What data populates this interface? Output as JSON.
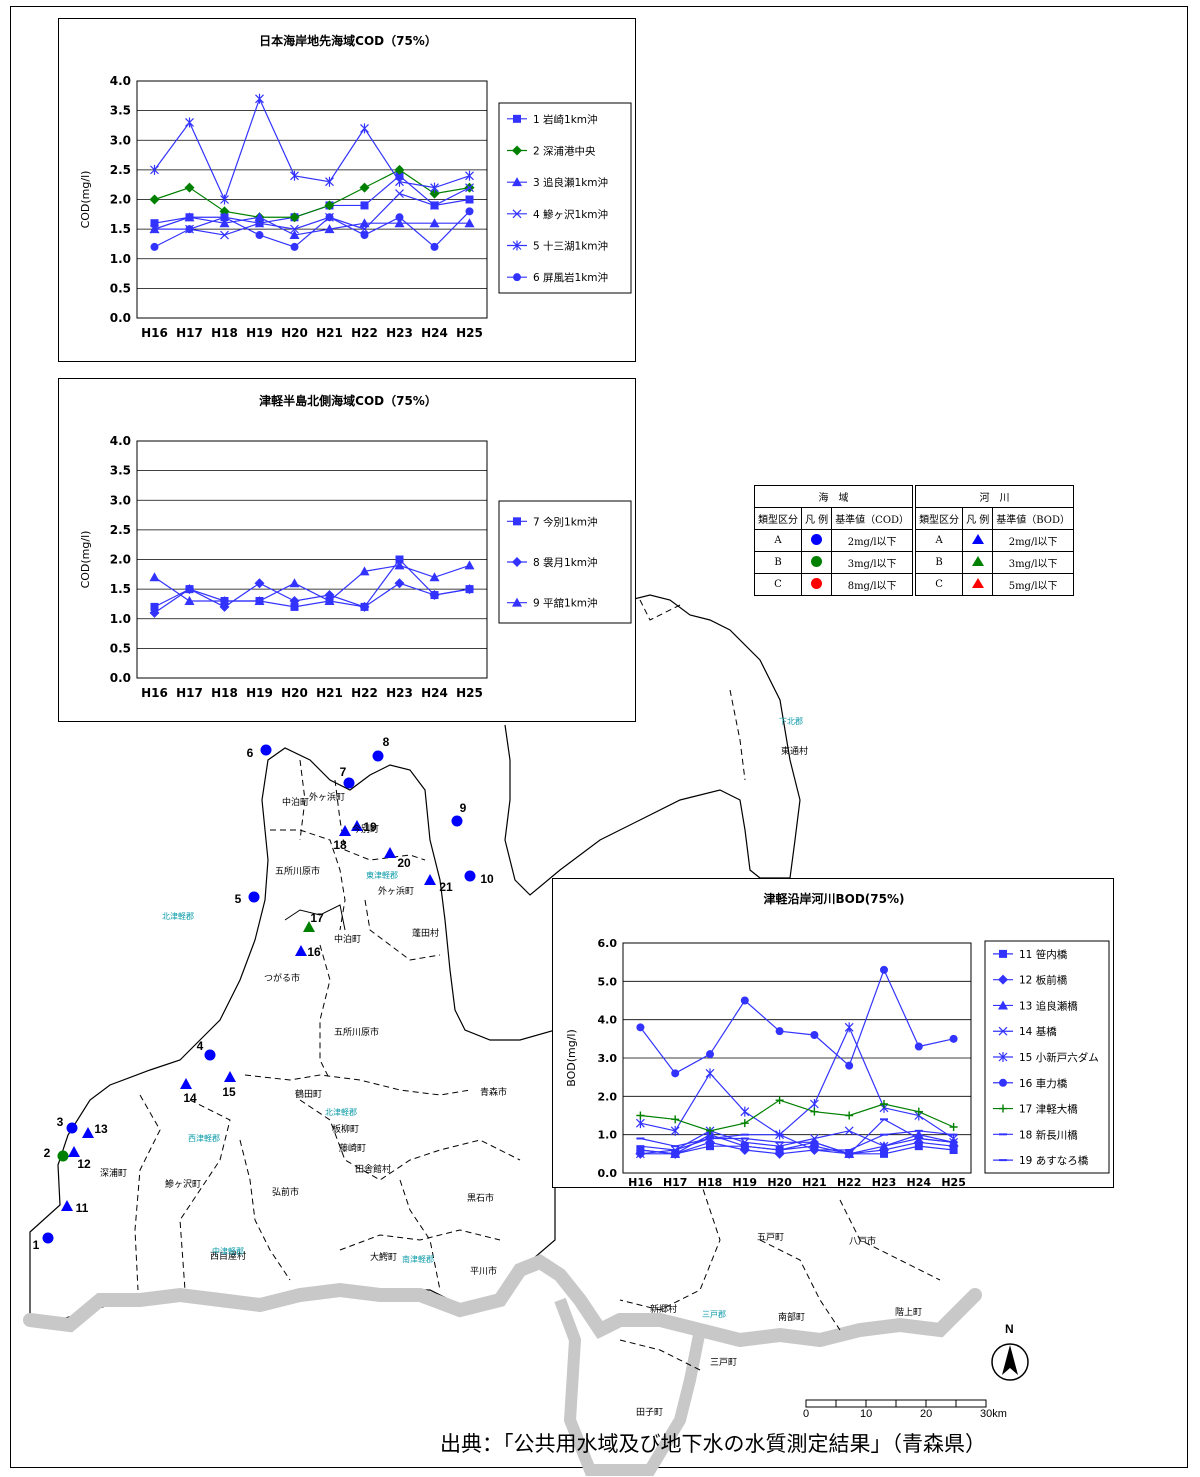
{
  "charts": [
    {
      "title": "日本海岸地先海域COD（75%）",
      "ylabel": "COD(mg/l)",
      "yticks": [
        "0.0",
        "0.5",
        "1.0",
        "1.5",
        "2.0",
        "2.5",
        "3.0",
        "3.5",
        "4.0"
      ],
      "legend": [
        "1 岩崎1km沖",
        "2 深浦港中央",
        "3 追良瀬1km沖",
        "4 鰺ヶ沢1km沖",
        "5 十三湖1km沖",
        "6 屏風岩1km沖"
      ]
    },
    {
      "title": "津軽半島北側海域COD（75%）",
      "ylabel": "COD(mg/l)",
      "yticks": [
        "0.0",
        "0.5",
        "1.0",
        "1.5",
        "2.0",
        "2.5",
        "3.0",
        "3.5",
        "4.0"
      ],
      "legend": [
        "7 今別1km沖",
        "8 袰月1km沖",
        "9 平舘1km沖"
      ]
    },
    {
      "title": "津軽沿岸河川BOD(75%)",
      "ylabel": "BOD(mg/l)",
      "yticks": [
        "0.0",
        "1.0",
        "2.0",
        "3.0",
        "4.0",
        "5.0",
        "6.0"
      ],
      "legend": [
        "11 笹内橋",
        "12 板前橋",
        "13 追良瀬橋",
        "14 基橋",
        "15 小新戸六ダム",
        "16 車力橋",
        "17 津軽大橋",
        "18 新長川橋",
        "19 あすなろ橋"
      ]
    }
  ],
  "chart_data": [
    {
      "type": "line",
      "title": "日本海岸地先海域COD（75%）",
      "xlabel": "",
      "ylabel": "COD(mg/l)",
      "categories": [
        "H16",
        "H17",
        "H18",
        "H19",
        "H20",
        "H21",
        "H22",
        "H23",
        "H24",
        "H25"
      ],
      "ylim": [
        0,
        4.0
      ],
      "series": [
        {
          "name": "1 岩崎1km沖",
          "marker": "square",
          "color": "#3333ff",
          "values": [
            1.6,
            1.7,
            1.7,
            1.6,
            1.7,
            1.9,
            1.9,
            2.4,
            1.9,
            2.0
          ]
        },
        {
          "name": "2 深浦港中央",
          "marker": "diamond",
          "color": "#008000",
          "values": [
            2.0,
            2.2,
            1.8,
            1.7,
            1.7,
            1.9,
            2.2,
            2.5,
            2.1,
            2.2
          ]
        },
        {
          "name": "3 追良瀬1km沖",
          "marker": "triangle",
          "color": "#3333ff",
          "values": [
            1.5,
            1.7,
            1.6,
            1.7,
            1.4,
            1.5,
            1.6,
            1.6,
            1.6,
            1.6
          ]
        },
        {
          "name": "4 鰺ヶ沢1km沖",
          "marker": "x",
          "color": "#3333ff",
          "values": [
            1.5,
            1.5,
            1.4,
            1.6,
            1.5,
            1.7,
            1.5,
            2.1,
            1.9,
            2.2
          ]
        },
        {
          "name": "5 十三湖1km沖",
          "marker": "star",
          "color": "#3333ff",
          "values": [
            2.5,
            3.3,
            2.0,
            3.7,
            2.4,
            2.3,
            3.2,
            2.3,
            2.2,
            2.4
          ]
        },
        {
          "name": "6 屏風岩1km沖",
          "marker": "circle",
          "color": "#3333ff",
          "values": [
            1.2,
            1.5,
            1.7,
            1.4,
            1.2,
            1.7,
            1.4,
            1.7,
            1.2,
            1.8
          ]
        }
      ]
    },
    {
      "type": "line",
      "title": "津軽半島北側海域COD（75%）",
      "xlabel": "",
      "ylabel": "COD(mg/l)",
      "categories": [
        "H16",
        "H17",
        "H18",
        "H19",
        "H20",
        "H21",
        "H22",
        "H23",
        "H24",
        "H25"
      ],
      "ylim": [
        0,
        4.0
      ],
      "series": [
        {
          "name": "7 今別1km沖",
          "marker": "square",
          "color": "#3333ff",
          "values": [
            1.2,
            1.5,
            1.3,
            1.3,
            1.2,
            1.3,
            1.2,
            2.0,
            1.4,
            1.5
          ]
        },
        {
          "name": "8 袰月1km沖",
          "marker": "diamond",
          "color": "#3333ff",
          "values": [
            1.1,
            1.5,
            1.2,
            1.6,
            1.3,
            1.4,
            1.2,
            1.6,
            1.4,
            1.5
          ]
        },
        {
          "name": "9 平舘1km沖",
          "marker": "triangle",
          "color": "#3333ff",
          "values": [
            1.7,
            1.3,
            1.3,
            1.3,
            1.6,
            1.3,
            1.8,
            1.9,
            1.7,
            1.9
          ]
        }
      ]
    },
    {
      "type": "line",
      "title": "津軽沿岸河川BOD(75%)",
      "xlabel": "",
      "ylabel": "BOD(mg/l)",
      "categories": [
        "H16",
        "H17",
        "H18",
        "H19",
        "H20",
        "H21",
        "H22",
        "H23",
        "H24",
        "H25"
      ],
      "ylim": [
        0,
        6.0
      ],
      "series": [
        {
          "name": "11 笹内橋",
          "marker": "square",
          "color": "#3333ff",
          "values": [
            0.6,
            0.5,
            0.7,
            0.7,
            0.6,
            0.7,
            0.5,
            0.5,
            0.7,
            0.6
          ]
        },
        {
          "name": "12 板前橋",
          "marker": "diamond",
          "color": "#3333ff",
          "values": [
            0.5,
            0.5,
            0.8,
            0.6,
            0.5,
            0.6,
            0.5,
            0.6,
            0.8,
            0.7
          ]
        },
        {
          "name": "13 追良瀬橋",
          "marker": "triangle",
          "color": "#3333ff",
          "values": [
            0.6,
            0.5,
            1.0,
            0.7,
            0.6,
            0.8,
            0.5,
            0.7,
            1.0,
            0.8
          ]
        },
        {
          "name": "14 基橋",
          "marker": "x",
          "color": "#3333ff",
          "values": [
            0.5,
            0.6,
            1.1,
            0.8,
            0.7,
            0.9,
            1.1,
            0.7,
            0.9,
            0.8
          ]
        },
        {
          "name": "15 小新戸六ダム",
          "marker": "star",
          "color": "#3333ff",
          "values": [
            1.3,
            1.1,
            2.6,
            1.6,
            1.0,
            1.8,
            3.8,
            1.7,
            1.5,
            0.9
          ]
        },
        {
          "name": "16 車力橋",
          "marker": "circle",
          "color": "#3333ff",
          "values": [
            3.8,
            2.6,
            3.1,
            4.5,
            3.7,
            3.6,
            2.8,
            5.3,
            3.3,
            3.5
          ]
        },
        {
          "name": "17 津軽大橋",
          "marker": "plus",
          "color": "#008000",
          "values": [
            1.5,
            1.4,
            1.1,
            1.3,
            1.9,
            1.6,
            1.5,
            1.8,
            1.6,
            1.2
          ]
        },
        {
          "name": "18 新長川橋",
          "marker": "dash",
          "color": "#3333ff",
          "values": [
            0.9,
            0.7,
            0.9,
            0.9,
            0.8,
            0.8,
            0.5,
            1.4,
            0.9,
            0.8
          ]
        },
        {
          "name": "19 あすなろ橋",
          "marker": "dash",
          "color": "#3333ff",
          "values": [
            0.7,
            0.6,
            0.9,
            1.0,
            1.0,
            0.6,
            0.6,
            1.0,
            1.1,
            1.0
          ]
        }
      ]
    }
  ],
  "legend_table": {
    "sea": {
      "header": "海　域",
      "cols": [
        "類型区分",
        "凡 例",
        "基準値（COD）"
      ],
      "rows": [
        {
          "type": "A",
          "color": "#0000ff",
          "value": "2mg/l以下"
        },
        {
          "type": "B",
          "color": "#008000",
          "value": "3mg/l以下"
        },
        {
          "type": "C",
          "color": "#ff0000",
          "value": "8mg/l以下"
        }
      ]
    },
    "river": {
      "header": "河　川",
      "cols": [
        "類型区分",
        "凡 例",
        "基準値（BOD）"
      ],
      "rows": [
        {
          "type": "A",
          "color": "#0000ff",
          "value": "2mg/l以下"
        },
        {
          "type": "B",
          "color": "#008000",
          "value": "3mg/l以下"
        },
        {
          "type": "C",
          "color": "#ff0000",
          "value": "5mg/l以下"
        }
      ]
    }
  },
  "stations": [
    {
      "label": "1",
      "shape": "circle",
      "color": "#0000ff"
    },
    {
      "label": "2",
      "shape": "circle",
      "color": "#008000"
    },
    {
      "label": "3",
      "shape": "circle",
      "color": "#0000ff"
    },
    {
      "label": "4",
      "shape": "circle",
      "color": "#0000ff"
    },
    {
      "label": "5",
      "shape": "circle",
      "color": "#0000ff"
    },
    {
      "label": "6",
      "shape": "circle",
      "color": "#0000ff"
    },
    {
      "label": "7",
      "shape": "circle",
      "color": "#0000ff"
    },
    {
      "label": "8",
      "shape": "circle",
      "color": "#0000ff"
    },
    {
      "label": "9",
      "shape": "circle",
      "color": "#0000ff"
    },
    {
      "label": "10",
      "shape": "circle",
      "color": "#0000ff"
    },
    {
      "label": "11",
      "shape": "triangle",
      "color": "#0000ff"
    },
    {
      "label": "12",
      "shape": "triangle",
      "color": "#0000ff"
    },
    {
      "label": "13",
      "shape": "triangle",
      "color": "#0000ff"
    },
    {
      "label": "14",
      "shape": "triangle",
      "color": "#0000ff"
    },
    {
      "label": "15",
      "shape": "triangle",
      "color": "#0000ff"
    },
    {
      "label": "16",
      "shape": "triangle",
      "color": "#0000ff"
    },
    {
      "label": "17",
      "shape": "triangle",
      "color": "#008000"
    },
    {
      "label": "18",
      "shape": "triangle",
      "color": "#0000ff"
    },
    {
      "label": "19",
      "shape": "triangle",
      "color": "#0000ff"
    },
    {
      "label": "20",
      "shape": "triangle",
      "color": "#0000ff"
    },
    {
      "label": "21",
      "shape": "triangle",
      "color": "#0000ff"
    }
  ],
  "place_names": [
    "中泊町",
    "外ヶ浜町",
    "今別町",
    "五所川原市",
    "外ヶ浜町",
    "蓬田村",
    "中泊町",
    "つがる市",
    "五所川原市",
    "青森市",
    "鶴田町",
    "板柳町",
    "藤崎町",
    "田舎館村",
    "深浦町",
    "鰺ヶ沢町",
    "弘前市",
    "黒石市",
    "西目屋村",
    "大鰐町",
    "平川市",
    "東通村",
    "五戸町",
    "八戸市",
    "新郷村",
    "南部町",
    "階上町",
    "三戸町",
    "田子町"
  ],
  "district_names": [
    "西津軽郡",
    "北津軽郡",
    "東津軽郡",
    "中津軽郡",
    "南津軽郡",
    "北津軽郡",
    "下北郡",
    "三戸郡"
  ],
  "scale": {
    "ticks": [
      "0",
      "10",
      "20",
      "30km"
    ]
  },
  "north": "N",
  "source": "出典：「公共用水域及び地下水の水質測定結果」（青森県）"
}
